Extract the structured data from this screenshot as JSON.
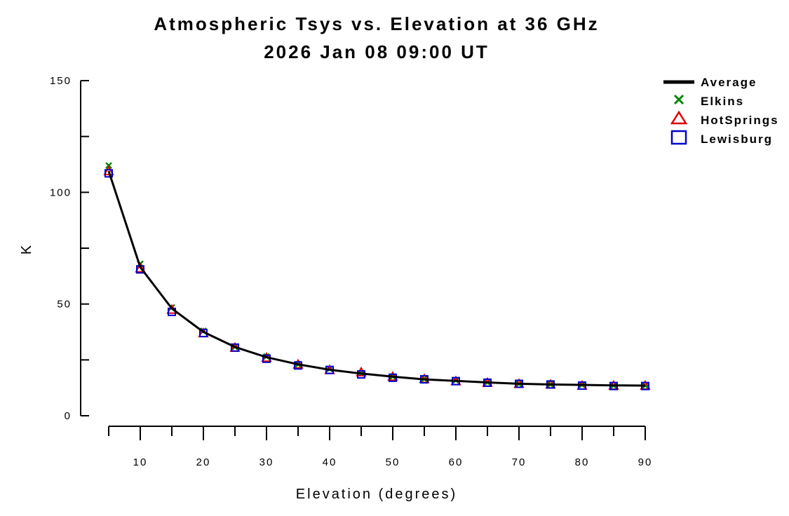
{
  "chart_data": {
    "type": "line",
    "title": "Atmospheric Tsys vs. Elevation at 36 GHz",
    "subtitle": "2026 Jan 08 09:00 UT",
    "xlabel": "Elevation (degrees)",
    "ylabel": "K",
    "xlim": [
      5,
      90
    ],
    "ylim": [
      0,
      150
    ],
    "x_ticks": [
      10,
      20,
      30,
      40,
      50,
      60,
      70,
      80,
      90
    ],
    "x_tick_labels": [
      "10",
      "20",
      "30",
      "40",
      "50",
      "60",
      "70",
      "80",
      "90"
    ],
    "x_minor_ticks": [
      5,
      15,
      25,
      35,
      45,
      55,
      65,
      75,
      85
    ],
    "y_ticks": [
      0,
      50,
      100,
      150
    ],
    "y_tick_labels": [
      "0",
      "50",
      "100",
      "150"
    ],
    "y_minor_ticks": [
      25,
      75,
      125
    ],
    "grid": false,
    "legend_position": "top-right",
    "x": [
      5,
      10,
      15,
      20,
      25,
      30,
      35,
      40,
      45,
      50,
      55,
      60,
      65,
      70,
      75,
      80,
      85,
      90
    ],
    "series": [
      {
        "name": "Average",
        "style": "line",
        "color": "#000000",
        "values": [
          109.5,
          66.5,
          48.0,
          37.5,
          30.8,
          26.2,
          23.0,
          20.6,
          18.9,
          17.5,
          16.3,
          15.6,
          14.9,
          14.3,
          14.0,
          13.8,
          13.6,
          13.5
        ]
      },
      {
        "name": "Elkins",
        "style": "x-marker",
        "color": "#008800",
        "values": [
          112.0,
          68.0,
          48.5,
          38.0,
          30.8,
          26.5,
          23.0,
          21.0,
          19.0,
          17.5,
          16.5,
          15.8,
          15.0,
          14.3,
          14.0,
          13.8,
          13.5,
          13.5
        ]
      },
      {
        "name": "HotSprings",
        "style": "triangle-marker",
        "color": "#dd0000",
        "values": [
          109.5,
          66.0,
          47.5,
          37.0,
          30.5,
          26.0,
          23.0,
          20.5,
          19.5,
          17.5,
          16.5,
          15.5,
          14.8,
          14.3,
          14.0,
          13.5,
          13.5,
          13.5
        ]
      },
      {
        "name": "Lewisburg",
        "style": "square-marker",
        "color": "#0000cc",
        "values": [
          108.5,
          65.5,
          46.5,
          37.0,
          30.5,
          25.5,
          22.5,
          20.5,
          18.5,
          17.0,
          16.3,
          15.5,
          14.8,
          14.3,
          14.0,
          13.5,
          13.3,
          13.3
        ]
      }
    ]
  }
}
